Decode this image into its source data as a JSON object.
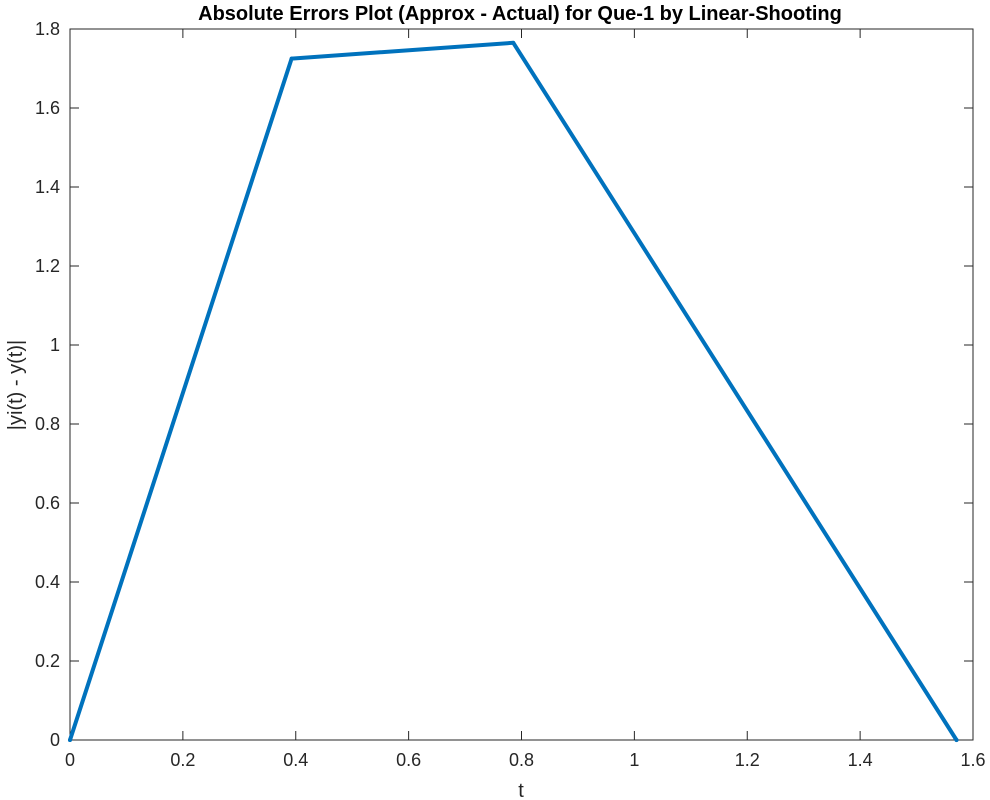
{
  "chart_data": {
    "type": "line",
    "title": "Absolute Errors Plot (Approx - Actual) for Que-1 by Linear-Shooting",
    "xlabel": "t",
    "ylabel": "|yi(t) - y(t)|",
    "xlim": [
      0,
      1.6
    ],
    "ylim": [
      0,
      1.8
    ],
    "xticks": [
      0,
      0.2,
      0.4,
      0.6,
      0.8,
      1,
      1.2,
      1.4,
      1.6
    ],
    "xtick_labels": [
      "0",
      "0.2",
      "0.4",
      "0.6",
      "0.8",
      "1",
      "1.2",
      "1.4",
      "1.6"
    ],
    "yticks": [
      0,
      0.2,
      0.4,
      0.6,
      0.8,
      1,
      1.2,
      1.4,
      1.6,
      1.8
    ],
    "ytick_labels": [
      "0",
      "0.2",
      "0.4",
      "0.6",
      "0.8",
      "1",
      "1.2",
      "1.4",
      "1.6",
      "1.8"
    ],
    "grid": false,
    "legend": false,
    "series": [
      {
        "color": "#0072BD",
        "x": [
          0,
          0.3927,
          0.7854,
          1.5708
        ],
        "y": [
          0,
          1.725,
          1.765,
          0
        ]
      }
    ]
  }
}
